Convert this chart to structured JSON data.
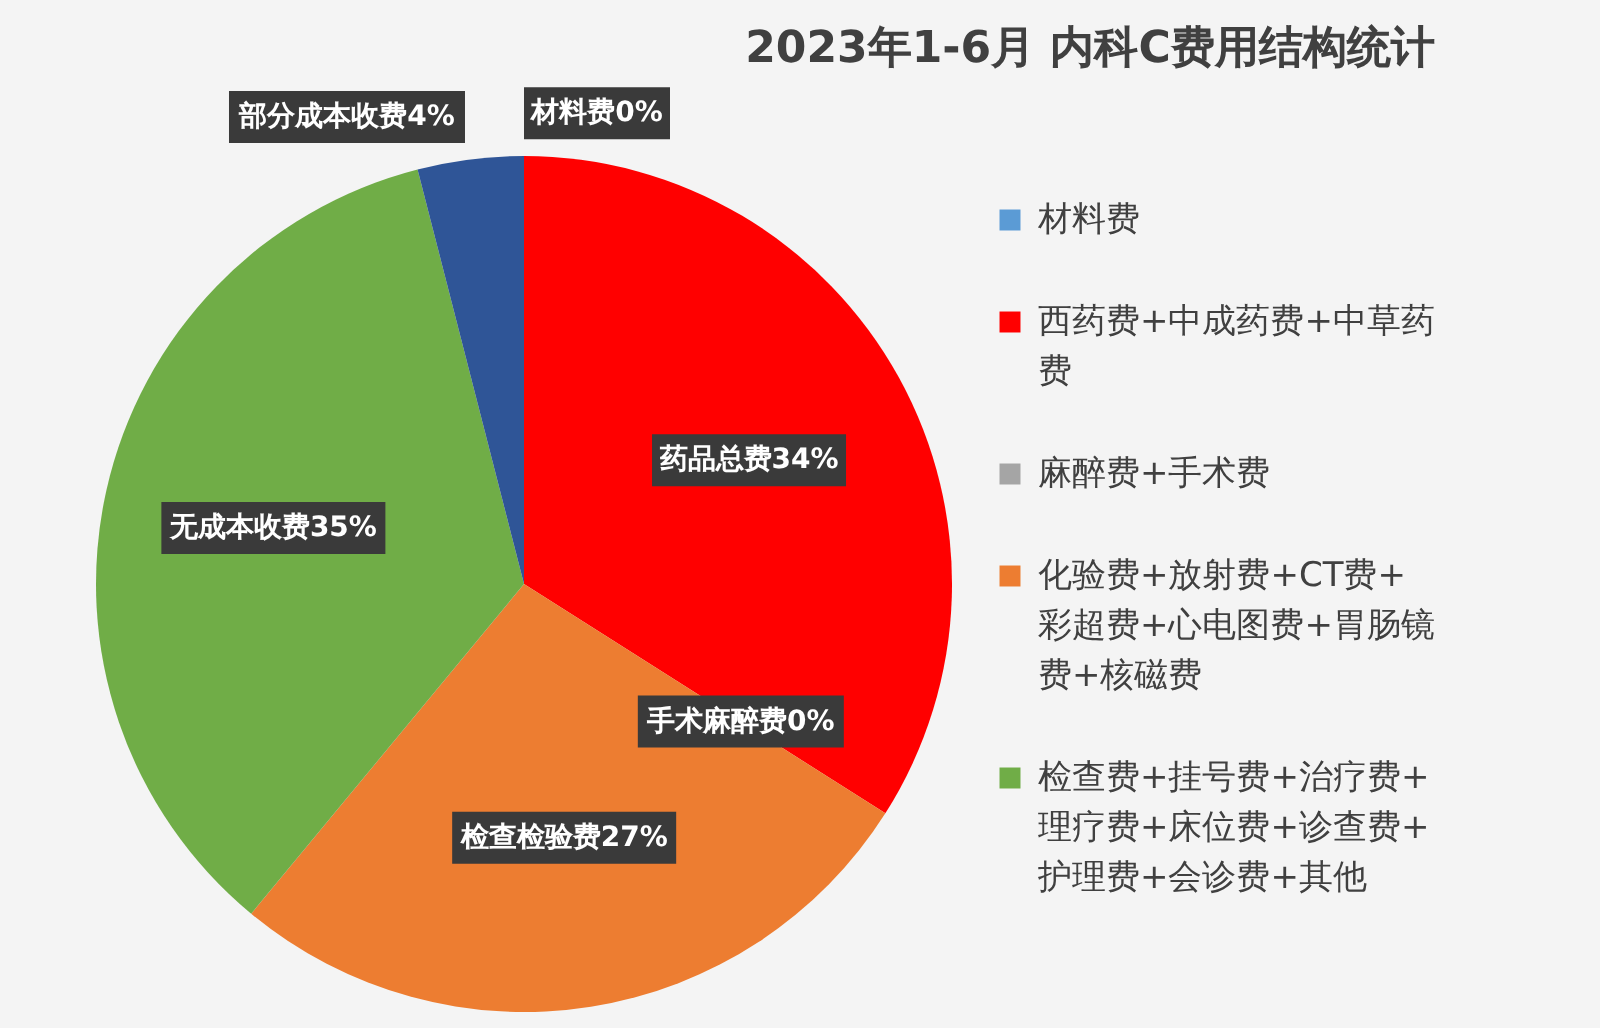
{
  "chart_data": {
    "type": "pie",
    "title": "2023年1-6月 内科C费用结构统计",
    "categories": [
      "材料费",
      "西药费+中成药费+中草药费",
      "麻醉费+手术费",
      "化验费+放射费+CT费+彩超费+心电图费+胃肠镜费+核磁费",
      "检查费+挂号费+治疗费+理疗费+床位费+诊查费+护理费+会诊费+其他",
      null
    ],
    "values": [
      0,
      34,
      0,
      27,
      35,
      4
    ],
    "colors": [
      "#5b9bd5",
      "#ff0000",
      "#a5a5a5",
      "#ed7d31",
      "#70ad47",
      "#2f5597"
    ],
    "value_labels": [
      "材料费0%",
      "药品总费34%",
      "手术麻醉费0%",
      "检查检验费27%",
      "无成本收费35%",
      "部分成本收费4%"
    ],
    "legend": "right"
  }
}
